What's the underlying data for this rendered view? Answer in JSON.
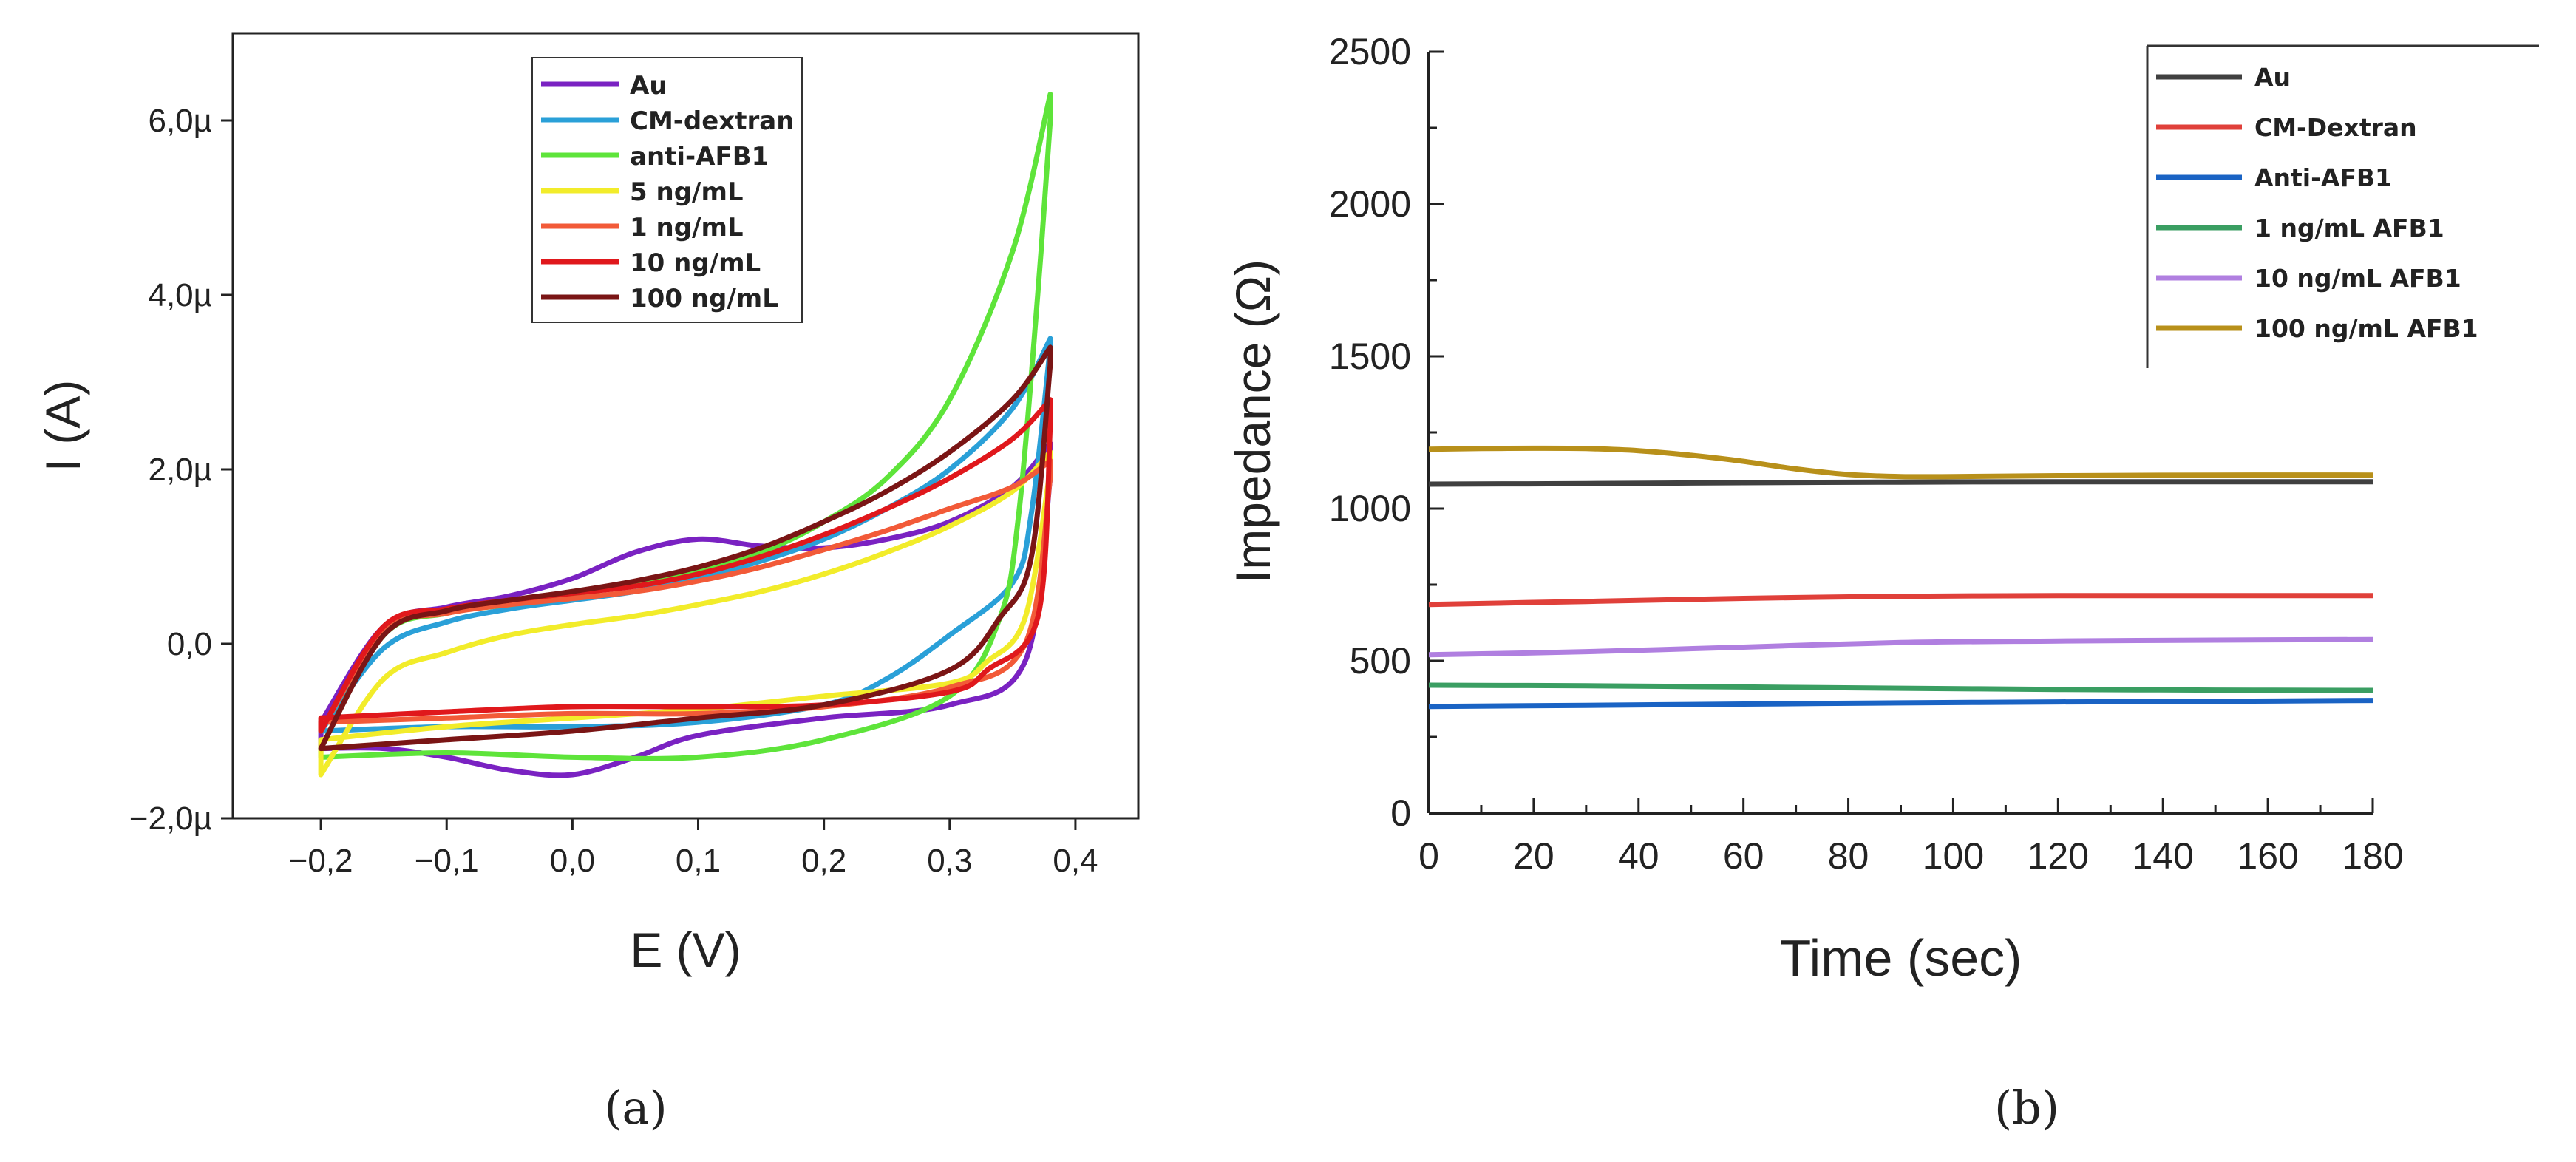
{
  "chart_data": [
    {
      "type": "line",
      "panel_label": "(a)",
      "xlabel": "E (V)",
      "ylabel": "I (A)",
      "xlim": [
        -0.27,
        0.45
      ],
      "ylim": [
        -2.0,
        7.0
      ],
      "x_ticks": [
        "−0,2",
        "−0,1",
        "0,0",
        "0,1",
        "0,2",
        "0,3",
        "0,4"
      ],
      "x_tick_values": [
        -0.2,
        -0.1,
        0.0,
        0.1,
        0.2,
        0.3,
        0.4
      ],
      "y_ticks": [
        "−2,0µ",
        "0,0",
        "2,0µ",
        "4,0µ",
        "6,0µ"
      ],
      "y_tick_values": [
        -2,
        0,
        2,
        4,
        6
      ],
      "y_unit": "µA",
      "legend_position": "top-right",
      "series": [
        {
          "name": "Au",
          "color": "#7a22c2",
          "upper": [
            [
              -0.2,
              -0.9
            ],
            [
              -0.15,
              0.2
            ],
            [
              -0.1,
              0.42
            ],
            [
              -0.05,
              0.55
            ],
            [
              0.0,
              0.75
            ],
            [
              0.05,
              1.05
            ],
            [
              0.1,
              1.2
            ],
            [
              0.15,
              1.12
            ],
            [
              0.2,
              1.1
            ],
            [
              0.25,
              1.2
            ],
            [
              0.3,
              1.4
            ],
            [
              0.35,
              1.8
            ],
            [
              0.38,
              2.3
            ]
          ],
          "lower": [
            [
              0.38,
              1.9
            ],
            [
              0.36,
              -0.2
            ],
            [
              0.3,
              -0.7
            ],
            [
              0.2,
              -0.85
            ],
            [
              0.1,
              -1.05
            ],
            [
              0.05,
              -1.3
            ],
            [
              0.0,
              -1.5
            ],
            [
              -0.05,
              -1.45
            ],
            [
              -0.1,
              -1.3
            ],
            [
              -0.15,
              -1.2
            ],
            [
              -0.2,
              -1.2
            ]
          ]
        },
        {
          "name": "CM-dextran",
          "color": "#2aa0d8",
          "upper": [
            [
              -0.2,
              -1.0
            ],
            [
              -0.15,
              -0.05
            ],
            [
              -0.1,
              0.25
            ],
            [
              -0.05,
              0.4
            ],
            [
              0.0,
              0.5
            ],
            [
              0.05,
              0.6
            ],
            [
              0.1,
              0.75
            ],
            [
              0.15,
              0.95
            ],
            [
              0.2,
              1.2
            ],
            [
              0.25,
              1.55
            ],
            [
              0.3,
              2.0
            ],
            [
              0.35,
              2.7
            ],
            [
              0.38,
              3.5
            ]
          ],
          "lower": [
            [
              0.38,
              3.4
            ],
            [
              0.365,
              1.5
            ],
            [
              0.35,
              0.7
            ],
            [
              0.3,
              0.1
            ],
            [
              0.25,
              -0.4
            ],
            [
              0.2,
              -0.7
            ],
            [
              0.1,
              -0.9
            ],
            [
              0.0,
              -0.95
            ],
            [
              -0.1,
              -0.95
            ],
            [
              -0.2,
              -1.0
            ]
          ]
        },
        {
          "name": "anti-AFB1",
          "color": "#5ee43a",
          "upper": [
            [
              -0.2,
              -1.2
            ],
            [
              -0.15,
              0.1
            ],
            [
              -0.1,
              0.35
            ],
            [
              -0.05,
              0.45
            ],
            [
              0.0,
              0.55
            ],
            [
              0.05,
              0.7
            ],
            [
              0.1,
              0.85
            ],
            [
              0.15,
              1.05
            ],
            [
              0.2,
              1.4
            ],
            [
              0.25,
              1.9
            ],
            [
              0.3,
              2.8
            ],
            [
              0.35,
              4.5
            ],
            [
              0.38,
              6.3
            ]
          ],
          "lower": [
            [
              0.38,
              6.0
            ],
            [
              0.37,
              4.0
            ],
            [
              0.355,
              1.5
            ],
            [
              0.34,
              0.3
            ],
            [
              0.3,
              -0.6
            ],
            [
              0.2,
              -1.1
            ],
            [
              0.1,
              -1.3
            ],
            [
              0.0,
              -1.3
            ],
            [
              -0.1,
              -1.25
            ],
            [
              -0.2,
              -1.3
            ]
          ]
        },
        {
          "name": "5 ng/mL",
          "color": "#f2ec2a",
          "upper": [
            [
              -0.2,
              -1.5
            ],
            [
              -0.15,
              -0.4
            ],
            [
              -0.1,
              -0.1
            ],
            [
              -0.05,
              0.1
            ],
            [
              0.0,
              0.22
            ],
            [
              0.05,
              0.32
            ],
            [
              0.1,
              0.45
            ],
            [
              0.15,
              0.6
            ],
            [
              0.2,
              0.8
            ],
            [
              0.25,
              1.05
            ],
            [
              0.3,
              1.35
            ],
            [
              0.35,
              1.75
            ],
            [
              0.38,
              2.2
            ]
          ],
          "lower": [
            [
              0.38,
              2.0
            ],
            [
              0.36,
              0.3
            ],
            [
              0.33,
              -0.2
            ],
            [
              0.3,
              -0.45
            ],
            [
              0.2,
              -0.6
            ],
            [
              0.1,
              -0.75
            ],
            [
              0.0,
              -0.85
            ],
            [
              -0.1,
              -0.95
            ],
            [
              -0.2,
              -1.1
            ]
          ]
        },
        {
          "name": "1 ng/mL",
          "color": "#f25a38",
          "upper": [
            [
              -0.2,
              -1.0
            ],
            [
              -0.15,
              0.15
            ],
            [
              -0.1,
              0.35
            ],
            [
              -0.05,
              0.45
            ],
            [
              0.0,
              0.52
            ],
            [
              0.05,
              0.6
            ],
            [
              0.1,
              0.72
            ],
            [
              0.15,
              0.88
            ],
            [
              0.2,
              1.08
            ],
            [
              0.25,
              1.3
            ],
            [
              0.3,
              1.55
            ],
            [
              0.35,
              1.8
            ],
            [
              0.38,
              2.1
            ]
          ],
          "lower": [
            [
              0.38,
              1.9
            ],
            [
              0.36,
              0.0
            ],
            [
              0.3,
              -0.5
            ],
            [
              0.2,
              -0.72
            ],
            [
              0.1,
              -0.8
            ],
            [
              0.0,
              -0.8
            ],
            [
              -0.1,
              -0.85
            ],
            [
              -0.2,
              -0.9
            ]
          ]
        },
        {
          "name": "10 ng/mL",
          "color": "#e0181c",
          "upper": [
            [
              -0.2,
              -1.0
            ],
            [
              -0.15,
              0.2
            ],
            [
              -0.1,
              0.4
            ],
            [
              -0.05,
              0.5
            ],
            [
              0.0,
              0.58
            ],
            [
              0.05,
              0.66
            ],
            [
              0.1,
              0.8
            ],
            [
              0.15,
              1.0
            ],
            [
              0.2,
              1.25
            ],
            [
              0.25,
              1.55
            ],
            [
              0.3,
              1.9
            ],
            [
              0.35,
              2.35
            ],
            [
              0.38,
              2.8
            ]
          ],
          "lower": [
            [
              0.38,
              2.5
            ],
            [
              0.37,
              0.3
            ],
            [
              0.33,
              -0.3
            ],
            [
              0.3,
              -0.55
            ],
            [
              0.2,
              -0.7
            ],
            [
              0.1,
              -0.72
            ],
            [
              0.0,
              -0.72
            ],
            [
              -0.1,
              -0.78
            ],
            [
              -0.2,
              -0.85
            ]
          ]
        },
        {
          "name": "100 ng/mL",
          "color": "#7a1515",
          "upper": [
            [
              -0.2,
              -1.2
            ],
            [
              -0.15,
              0.1
            ],
            [
              -0.1,
              0.38
            ],
            [
              -0.05,
              0.5
            ],
            [
              0.0,
              0.6
            ],
            [
              0.05,
              0.72
            ],
            [
              0.1,
              0.88
            ],
            [
              0.15,
              1.1
            ],
            [
              0.2,
              1.4
            ],
            [
              0.25,
              1.75
            ],
            [
              0.3,
              2.2
            ],
            [
              0.35,
              2.8
            ],
            [
              0.38,
              3.4
            ]
          ],
          "lower": [
            [
              0.38,
              3.2
            ],
            [
              0.365,
              1.0
            ],
            [
              0.34,
              0.3
            ],
            [
              0.3,
              -0.3
            ],
            [
              0.2,
              -0.7
            ],
            [
              0.1,
              -0.85
            ],
            [
              0.0,
              -1.0
            ],
            [
              -0.1,
              -1.1
            ],
            [
              -0.2,
              -1.2
            ]
          ]
        }
      ]
    },
    {
      "type": "line",
      "panel_label": "(b)",
      "xlabel": "Time (sec)",
      "ylabel": "Impedance (Ω)",
      "xlim": [
        0,
        180
      ],
      "ylim": [
        0,
        2500
      ],
      "x_ticks": [
        "0",
        "20",
        "40",
        "60",
        "80",
        "100",
        "120",
        "140",
        "160",
        "180"
      ],
      "x_tick_values": [
        0,
        20,
        40,
        60,
        80,
        100,
        120,
        140,
        160,
        180
      ],
      "y_ticks": [
        "0",
        "500",
        "1000",
        "1500",
        "2000",
        "2500"
      ],
      "y_tick_values": [
        0,
        500,
        1000,
        1500,
        2000,
        2500
      ],
      "legend_position": "top-right",
      "series": [
        {
          "name": "Au",
          "color": "#404040",
          "x": [
            0,
            30,
            60,
            90,
            120,
            150,
            180
          ],
          "y": [
            1080,
            1082,
            1085,
            1087,
            1088,
            1088,
            1088
          ]
        },
        {
          "name": "CM-Dextran",
          "color": "#e0403a",
          "x": [
            0,
            30,
            60,
            90,
            120,
            150,
            180
          ],
          "y": [
            685,
            695,
            705,
            712,
            714,
            714,
            714
          ]
        },
        {
          "name": "Anti-AFB1",
          "color": "#1a63c4",
          "x": [
            0,
            30,
            60,
            90,
            120,
            150,
            180
          ],
          "y": [
            350,
            354,
            358,
            362,
            365,
            367,
            370
          ]
        },
        {
          "name": "1 ng/mL AFB1",
          "color": "#3a9e62",
          "x": [
            0,
            30,
            60,
            90,
            120,
            150,
            180
          ],
          "y": [
            420,
            418,
            414,
            410,
            406,
            404,
            403
          ]
        },
        {
          "name": "10 ng/mL AFB1",
          "color": "#b07fe0",
          "x": [
            0,
            30,
            60,
            90,
            120,
            150,
            180
          ],
          "y": [
            520,
            530,
            545,
            560,
            565,
            568,
            570
          ]
        },
        {
          "name": "100 ng/mL AFB1",
          "color": "#b8901a",
          "x": [
            0,
            10,
            20,
            30,
            40,
            50,
            60,
            70,
            80,
            90,
            100,
            120,
            150,
            180
          ],
          "y": [
            1195,
            1197,
            1198,
            1197,
            1190,
            1175,
            1155,
            1130,
            1112,
            1105,
            1105,
            1108,
            1110,
            1110
          ]
        }
      ]
    }
  ]
}
